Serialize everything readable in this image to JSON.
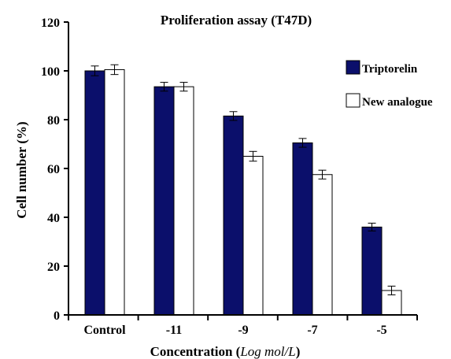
{
  "chart_data": {
    "type": "bar",
    "title": "Proliferation assay (T47D)",
    "xlabel": "Concentration (",
    "xlabel_unit": "Log mol/L",
    "xlabel_close": ")",
    "ylabel": "Cell number (%)",
    "categories": [
      "Control",
      "-11",
      "-9",
      "-7",
      "-5"
    ],
    "ylim": [
      0,
      120
    ],
    "yticks": [
      0,
      20,
      40,
      60,
      80,
      100,
      120
    ],
    "series": [
      {
        "name": "Triptorelin",
        "color": "#0b0f6b",
        "values": [
          100,
          93.5,
          81.5,
          70.5,
          36
        ],
        "errors": [
          2,
          1.8,
          1.8,
          1.8,
          1.6
        ]
      },
      {
        "name": "New analogue",
        "color": "#ffffff",
        "values": [
          100.5,
          93.5,
          65,
          57.5,
          10
        ],
        "errors": [
          2,
          1.8,
          2,
          1.8,
          1.8
        ]
      }
    ],
    "legend_position": "right"
  }
}
